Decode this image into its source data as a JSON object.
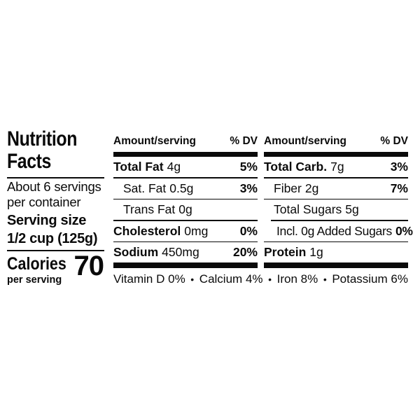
{
  "panel": {
    "title": [
      "Nutrition",
      "Facts"
    ],
    "servings": [
      "About 6 servings",
      "per container"
    ],
    "serving_size_label": "Serving size",
    "serving_size_value": "1/2 cup (125g)",
    "calories_label": "Calories",
    "calories_sublabel": "per serving",
    "calories_value": "70"
  },
  "columns": [
    {
      "header_amount": "Amount/serving",
      "header_dv": "% DV",
      "rows": [
        {
          "name": "Total Fat",
          "value": "4g",
          "dv": "5%"
        },
        {
          "name": "Sat. Fat",
          "value": "0.5g",
          "dv": "3%"
        },
        {
          "name": "Trans Fat",
          "value": "0g",
          "dv": ""
        },
        {
          "name": "Cholesterol",
          "value": "0mg",
          "dv": "0%"
        },
        {
          "name": "Sodium",
          "value": "450mg",
          "dv": "20%"
        }
      ]
    },
    {
      "header_amount": "Amount/serving",
      "header_dv": "% DV",
      "rows": [
        {
          "name": "Total Carb.",
          "value": "7g",
          "dv": "3%"
        },
        {
          "name": "Fiber",
          "value": "2g",
          "dv": "7%"
        },
        {
          "name": "Total Sugars",
          "value": "5g",
          "dv": ""
        },
        {
          "name": "Incl. 0g Added Sugars",
          "value": "",
          "dv": "0%"
        },
        {
          "name": "Protein",
          "value": "1g",
          "dv": ""
        }
      ]
    }
  ],
  "micronutrients": [
    {
      "name": "Vitamin D",
      "value": "0%"
    },
    {
      "name": "Calcium",
      "value": "4%"
    },
    {
      "name": "Iron",
      "value": "8%"
    },
    {
      "name": "Potassium",
      "value": "6%"
    }
  ],
  "separator": "•",
  "colors": {
    "text": "#0a0a0a",
    "background": "#ffffff"
  }
}
